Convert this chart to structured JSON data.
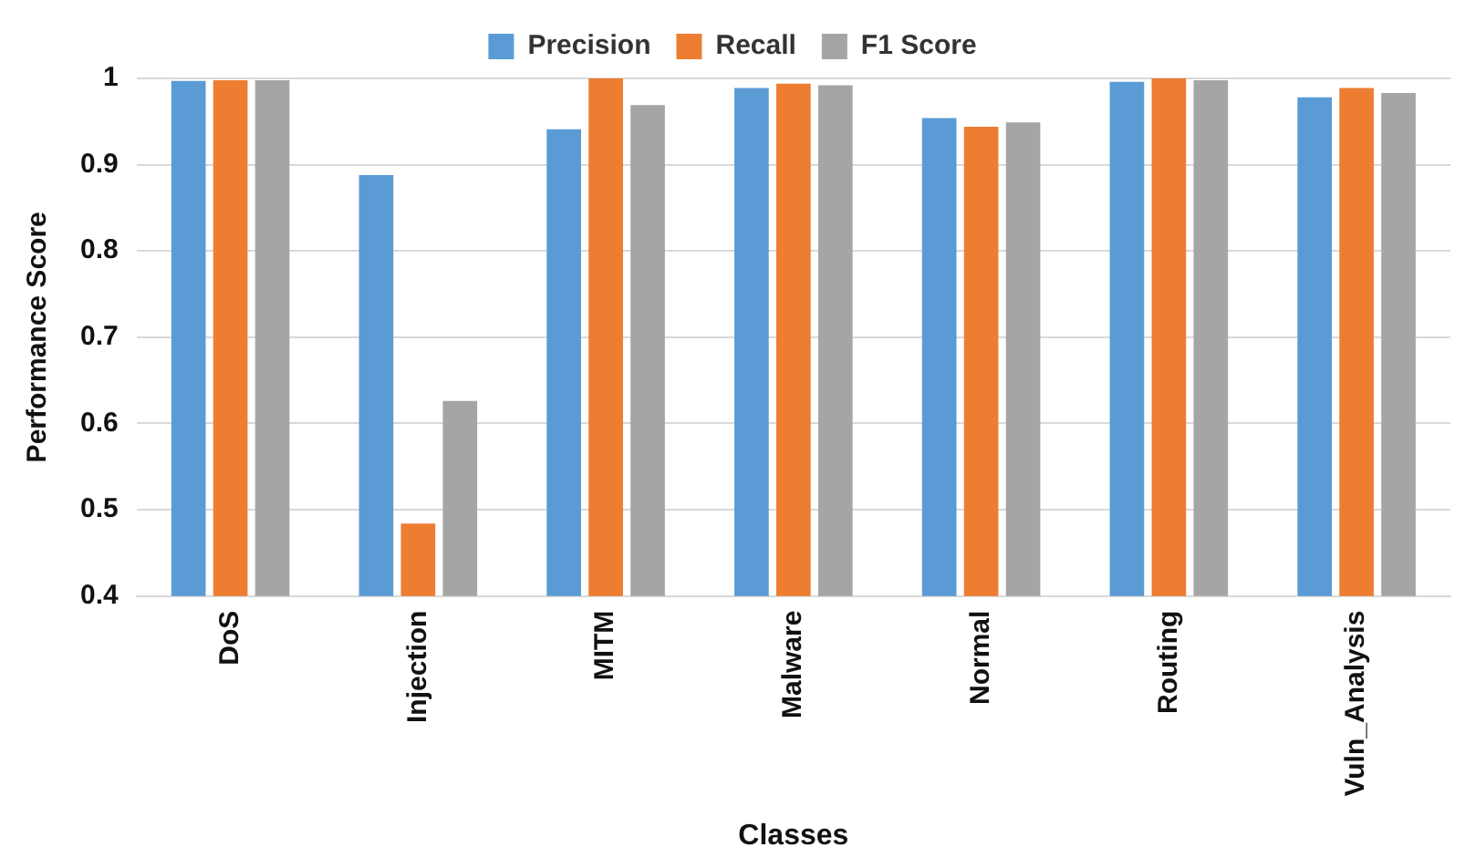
{
  "chart_data": {
    "type": "bar",
    "xlabel": "Classes",
    "ylabel": "Performance Score",
    "categories": [
      "DoS",
      "Injection",
      "MITM",
      "Malware",
      "Normal",
      "Routing",
      "Vuln_Analysis"
    ],
    "series": [
      {
        "name": "Precision",
        "color": "#5b9bd5",
        "values": [
          0.997,
          0.888,
          0.941,
          0.989,
          0.954,
          0.996,
          0.978
        ]
      },
      {
        "name": "Recall",
        "color": "#ed7d31",
        "values": [
          0.998,
          0.484,
          1.0,
          0.994,
          0.944,
          1.0,
          0.989
        ]
      },
      {
        "name": "F1 Score",
        "color": "#a5a5a5",
        "values": [
          0.998,
          0.626,
          0.969,
          0.992,
          0.949,
          0.998,
          0.983
        ]
      }
    ],
    "ylim": [
      0.4,
      1
    ],
    "yticks": [
      0.4,
      0.5,
      0.6,
      0.7,
      0.8,
      0.9,
      1
    ],
    "grid": "y",
    "legend": "top"
  }
}
